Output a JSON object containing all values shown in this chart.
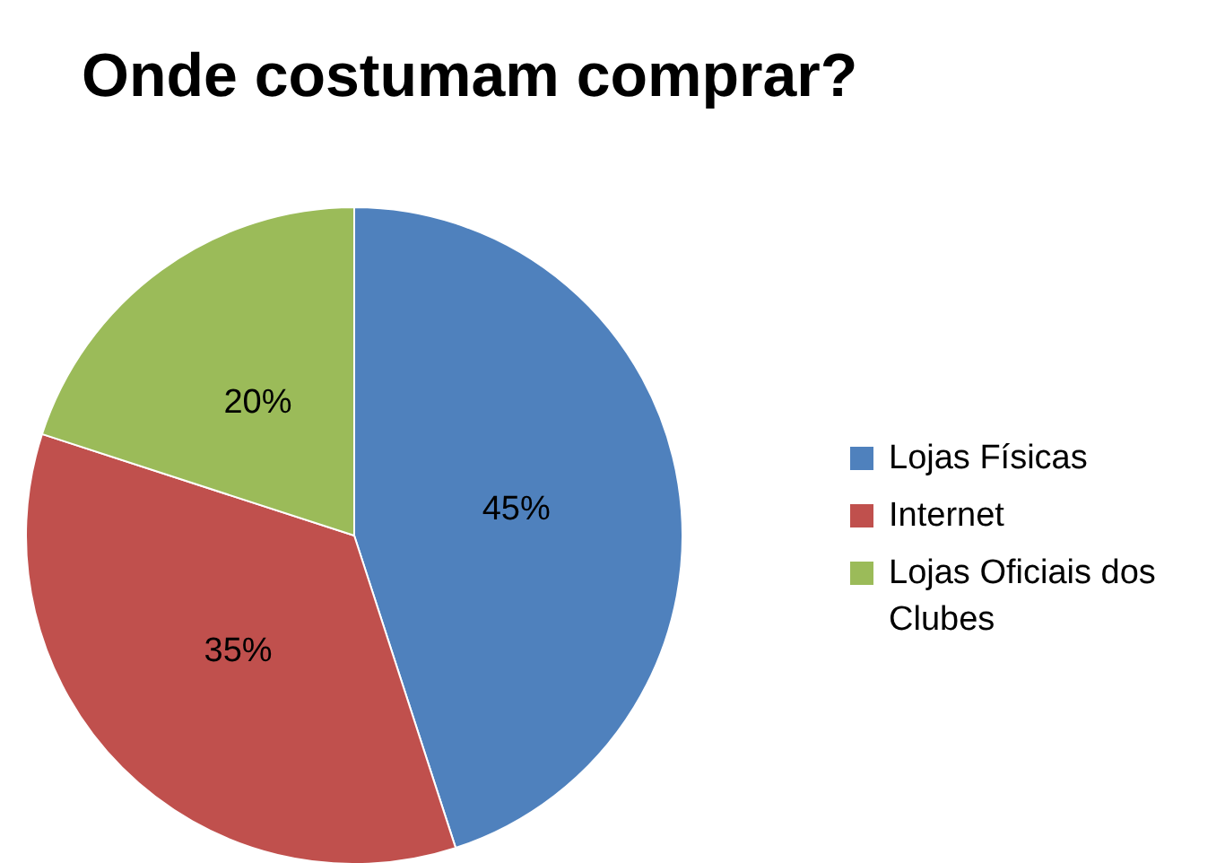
{
  "chart_data": {
    "type": "pie",
    "title": "Onde costumam comprar?",
    "categories": [
      "Lojas Físicas",
      "Internet",
      "Lojas Oficiais dos Clubes"
    ],
    "values": [
      45,
      35,
      20
    ],
    "colors": [
      "#4f81bd",
      "#c0504d",
      "#9bbb59"
    ],
    "value_labels": [
      "45%",
      "35%",
      "20%"
    ],
    "legend": "right"
  }
}
